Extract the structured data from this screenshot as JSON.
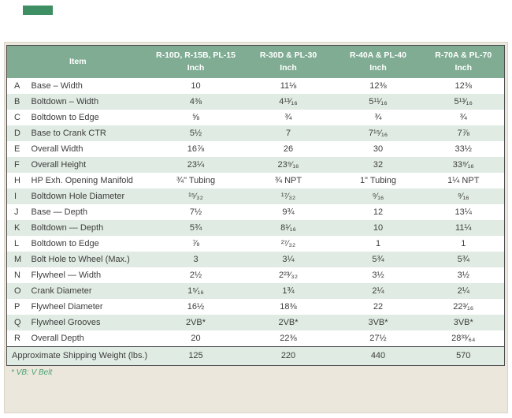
{
  "page": {
    "background": "#ffffff",
    "accent_tab_color": "#3f8f64",
    "panel_color": "#ebe7dc",
    "footnote": "* VB: V Belt"
  },
  "table": {
    "colors": {
      "header_bg": "#7fac93",
      "header_text": "#ffffff",
      "row_alt_bg": "#e0ebe3",
      "row_bg": "#ffffff",
      "border_dark": "#4c4c4e",
      "text": "#3d3d3d",
      "footnote_green": "#4da273"
    },
    "item_header": "Item",
    "columns": [
      {
        "line1": "R-10D, R-15B, PL-15",
        "line2": "Inch"
      },
      {
        "line1": "R-30D & PL-30",
        "line2": "Inch"
      },
      {
        "line1": "R-40A & PL-40",
        "line2": "Inch"
      },
      {
        "line1": "R-70A & PL-70",
        "line2": "Inch"
      }
    ],
    "rows": [
      {
        "letter": "A",
        "item": "Base – Width",
        "values": [
          "10",
          "11⅛",
          "12⅜",
          "12⅜"
        ]
      },
      {
        "letter": "B",
        "item": "Boltdown – Width",
        "values": [
          "4⅜",
          "4¹³⁄₁₆",
          "5¹¹⁄₁₆",
          "5¹³⁄₁₆"
        ]
      },
      {
        "letter": "C",
        "item": "Boltdown to Edge",
        "values": [
          "⅝",
          "¾",
          "¾",
          "¾"
        ]
      },
      {
        "letter": "D",
        "item": "Base to Crank CTR",
        "values": [
          "5½",
          "7",
          "7¹⁵⁄₁₆",
          "7⅞"
        ]
      },
      {
        "letter": "E",
        "item": "Overall Width",
        "values": [
          "16⅞",
          "26",
          "30",
          "33½"
        ]
      },
      {
        "letter": "F",
        "item": "Overall Height",
        "values": [
          "23¼",
          "23⁹⁄₁₆",
          "32",
          "33⁹⁄₁₆"
        ]
      },
      {
        "letter": "H",
        "item": "HP Exh. Opening Manifold",
        "values": [
          "¾\" Tubing",
          "¾ NPT",
          "1\" Tubing",
          "1¼ NPT"
        ]
      },
      {
        "letter": "I",
        "item": "Boltdown Hole Diameter",
        "values": [
          "¹⁵⁄₃₂",
          "¹⁷⁄₃₂",
          "⁹⁄₁₆",
          "⁹⁄₁₆"
        ]
      },
      {
        "letter": "J",
        "item": "Base — Depth",
        "values": [
          "7½",
          "9¾",
          "12",
          "13¼"
        ]
      },
      {
        "letter": "K",
        "item": "Boltdown — Depth",
        "values": [
          "5¾",
          "8¹⁄₁₆",
          "10",
          "11¼"
        ]
      },
      {
        "letter": "L",
        "item": "Boltdown to Edge",
        "values": [
          "⅞",
          "²⁷⁄₃₂",
          "1",
          "1"
        ]
      },
      {
        "letter": "M",
        "item": "Bolt Hole to Wheel (Max.)",
        "values": [
          "3",
          "3¼",
          "5¾",
          "5¾"
        ]
      },
      {
        "letter": "N",
        "item": "Flywheel — Width",
        "values": [
          "2½",
          "2²³⁄₃₂",
          "3½",
          "3½"
        ]
      },
      {
        "letter": "O",
        "item": "Crank Diameter",
        "values": [
          "1⁵⁄₁₆",
          "1¾",
          "2¼",
          "2¼"
        ]
      },
      {
        "letter": "P",
        "item": "Flywheel Diameter",
        "values": [
          "16½",
          "18⅜",
          "22",
          "22³⁄₁₆"
        ]
      },
      {
        "letter": "Q",
        "item": "Flywheel Grooves",
        "values": [
          "2VB*",
          "2VB*",
          "3VB*",
          "3VB*"
        ]
      },
      {
        "letter": "R",
        "item": "Overall Depth",
        "values": [
          "20",
          "22⅜",
          "27½",
          "28³³⁄₆₄"
        ]
      }
    ],
    "footer_row": {
      "label": "Approximate Shipping Weight (lbs.)",
      "values": [
        "125",
        "220",
        "440",
        "570"
      ]
    }
  }
}
